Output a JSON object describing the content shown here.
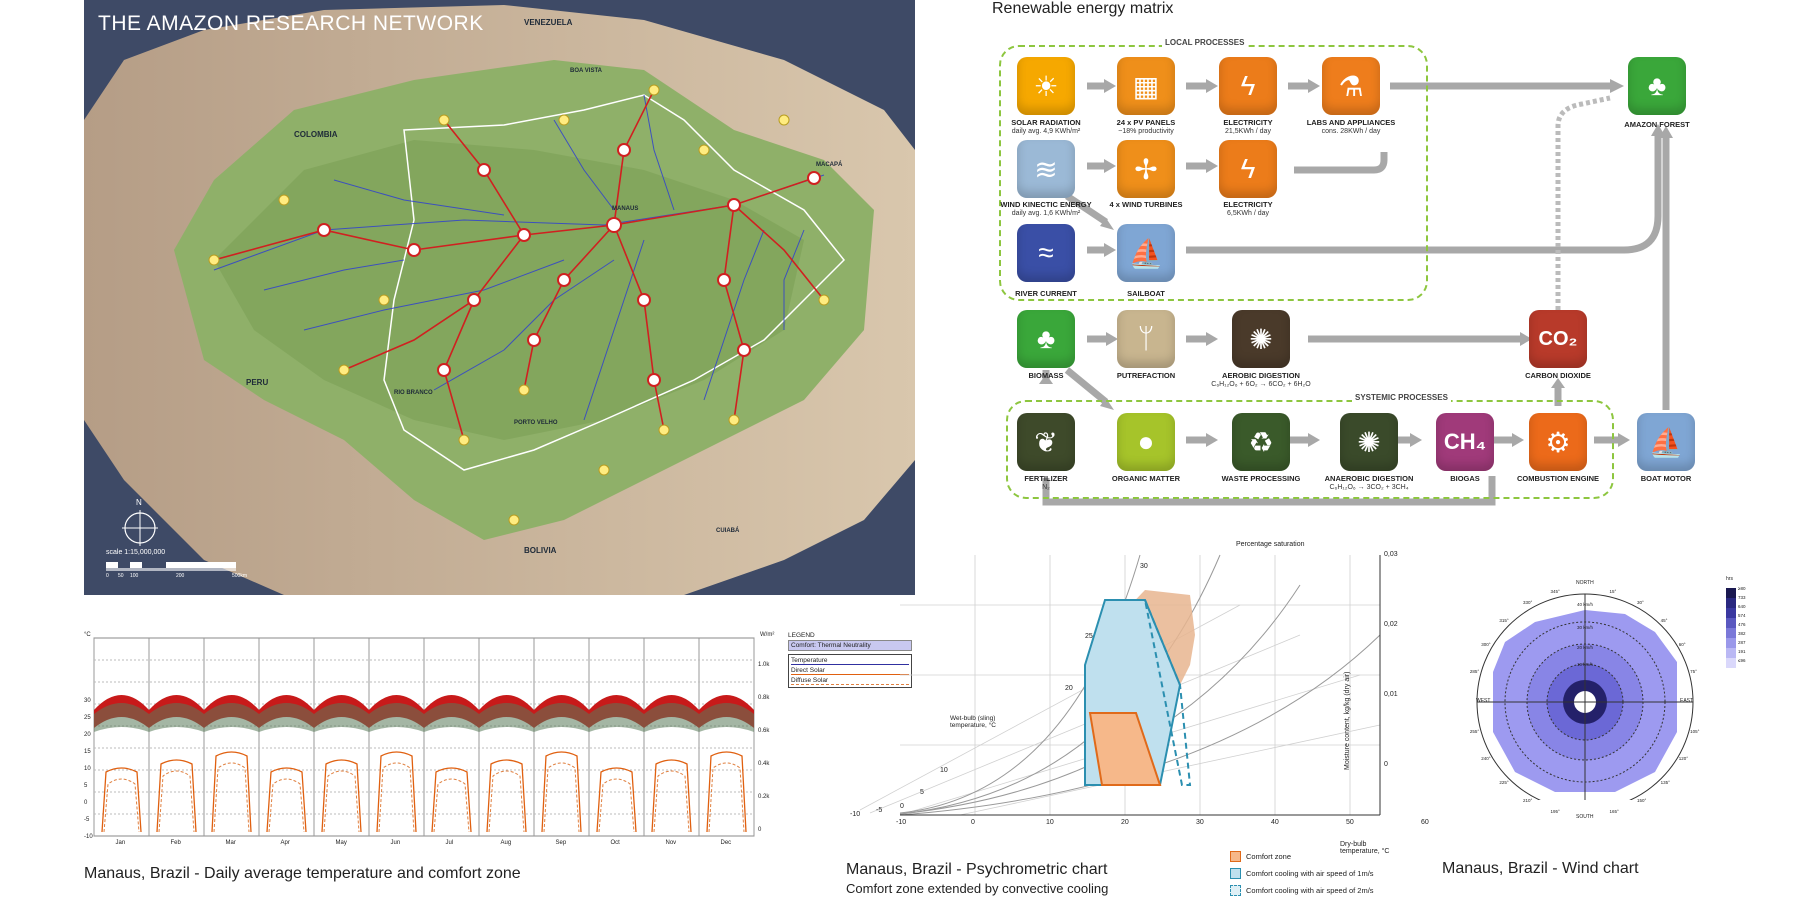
{
  "map": {
    "title": "THE AMAZON RESEARCH NETWORK",
    "countries": [
      "VENEZUELA",
      "COLOMBIA",
      "PERU",
      "BOLIVIA"
    ],
    "cities": [
      "BOA VISTA",
      "MACAPÁ",
      "MANAUS",
      "RIO BRANCO",
      "PORTO VELHO",
      "CUIABÁ"
    ],
    "compass": "N",
    "scale_label": "scale 1:15,000,000",
    "scale_ticks": [
      "0",
      "50",
      "100",
      "200",
      "500km"
    ]
  },
  "energy": {
    "title": "Renewable energy matrix",
    "local_label": "LOCAL PROCESSES",
    "systemic_label": "SYSTEMIC PROCESSES",
    "nodes": [
      {
        "label": "SOLAR RADIATION",
        "sub": "daily avg. 4,9 KWh/m²",
        "icon": "sun-icon",
        "glyph": "☀",
        "color": "#f6a800"
      },
      {
        "label": "24 x PV PANELS",
        "sub": "~18% productivity",
        "icon": "pv-panel-icon",
        "glyph": "▦",
        "color": "#ef8f1a"
      },
      {
        "label": "ELECTRICITY",
        "sub": "21,5KWh / day",
        "icon": "lightning-icon",
        "glyph": "ϟ",
        "color": "#ec7c1a"
      },
      {
        "label": "LABS AND APPLIANCES",
        "sub": "cons. 28KWh / day",
        "icon": "lab-flask-icon",
        "glyph": "⚗",
        "color": "#ee7d1c"
      },
      {
        "label": "AMAZON FOREST",
        "sub": "",
        "icon": "tree-icon",
        "glyph": "♣",
        "color": "#3aa73a"
      },
      {
        "label": "WIND KINECTIC ENERGY",
        "sub": "daily avg. 1,6 KWh/m²",
        "icon": "wind-icon",
        "glyph": "≋",
        "color": "#9bb9d6"
      },
      {
        "label": "4 x WIND TURBINES",
        "sub": "",
        "icon": "wind-turbine-icon",
        "glyph": "✢",
        "color": "#ef8f1a"
      },
      {
        "label": "ELECTRICITY",
        "sub": "6,5KWh / day",
        "icon": "lightning-icon",
        "glyph": "ϟ",
        "color": "#ec7c1a"
      },
      {
        "label": "RIVER CURRENT",
        "sub": "",
        "icon": "wave-icon",
        "glyph": "≈",
        "color": "#3a4fa6"
      },
      {
        "label": "SAILBOAT",
        "sub": "",
        "icon": "sailboat-icon",
        "glyph": "⛵",
        "color": "#7fa6d4"
      },
      {
        "label": "BIOMASS",
        "sub": "",
        "icon": "tree-icon",
        "glyph": "♣",
        "color": "#3aa73a"
      },
      {
        "label": "PUTREFACTION",
        "sub": "",
        "icon": "dead-tree-icon",
        "glyph": "ᛘ",
        "color": "#c8b58f"
      },
      {
        "label": "AEROBIC DIGESTION",
        "sub": "C₆H₁₂O₆ + 6O₂ → 6CO₂ + 6H₂O",
        "icon": "microbe-icon",
        "glyph": "✺",
        "color": "#4a3a2a"
      },
      {
        "label": "CARBON DIOXIDE",
        "sub": "",
        "icon": "co2-icon",
        "glyph": "CO₂",
        "color": "#b83a2a"
      },
      {
        "label": "FERTILIZER",
        "sub": "N₂",
        "icon": "fertilizer-bag-icon",
        "glyph": "❦",
        "color": "#3e4a2a"
      },
      {
        "label": "ORGANIC MATTER",
        "sub": "",
        "icon": "fruit-icon",
        "glyph": "●",
        "color": "#a6c42a"
      },
      {
        "label": "WASTE PROCESSING",
        "sub": "",
        "icon": "recycle-icon",
        "glyph": "♻",
        "color": "#3a5a2a"
      },
      {
        "label": "ANAEROBIC DIGESTION",
        "sub": "C₆H₁₂O₆ → 3CO₂ + 3CH₄",
        "icon": "microbe-icon",
        "glyph": "✺",
        "color": "#3a4a2a"
      },
      {
        "label": "BIOGAS",
        "sub": "",
        "icon": "ch4-icon",
        "glyph": "CH₄",
        "color": "#a03a7a"
      },
      {
        "label": "COMBUSTION ENGINE",
        "sub": "",
        "icon": "gear-icon",
        "glyph": "⚙",
        "color": "#ec6a1a"
      },
      {
        "label": "BOAT MOTOR",
        "sub": "",
        "icon": "sailboat-icon",
        "glyph": "⛵",
        "color": "#7fa6d4"
      }
    ]
  },
  "temp_chart": {
    "caption": "Manaus, Brazil - Daily average temperature and comfort zone",
    "months": [
      "Jan",
      "Feb",
      "Mar",
      "Apr",
      "May",
      "Jun",
      "Jul",
      "Aug",
      "Sep",
      "Oct",
      "Nov",
      "Dec"
    ],
    "left_unit": "°C",
    "right_unit": "W/m²",
    "left_ticks": [
      "30",
      "25",
      "20",
      "15",
      "10",
      "5",
      "0",
      "-5",
      "-10"
    ],
    "right_ticks": [
      "1.0k",
      "0.8k",
      "0.6k",
      "0.4k",
      "0.2k",
      "0"
    ],
    "legend": {
      "title": "LEGEND",
      "comfort": "Comfort: Thermal Neutrality",
      "items": [
        "Temperature",
        "Direct Solar",
        "Diffuse Solar"
      ]
    }
  },
  "psych": {
    "caption": "Manaus, Brazil - Psychrometric chart",
    "subcaption": "Comfort zone extended by convective cooling",
    "top_label": "Percentage saturation",
    "wetbulb_label": "Wet-bulb (sling) temperature, °C",
    "x_label": "Dry-bulb temperature, °C",
    "y_label": "Moisture content, kg/kg (dry air)",
    "x_ticks": [
      "-10",
      "0",
      "10",
      "20",
      "30",
      "40",
      "50",
      "60"
    ],
    "y_ticks": [
      "0,03",
      "0,02",
      "0,01",
      "0"
    ],
    "wb_ticks": [
      "30",
      "25",
      "20",
      "10",
      "5",
      "0",
      "-5",
      "-10"
    ],
    "legend": [
      "Comfort zone",
      "Comfort cooling with air speed of 1m/s",
      "Comfort cooling with air speed of 2m/s"
    ]
  },
  "wind": {
    "caption": "Manaus, Brazil - Wind chart",
    "directions": [
      "NORTH",
      "EAST",
      "SOUTH",
      "WEST"
    ],
    "angle_labels": [
      "15°",
      "30°",
      "45°",
      "60°",
      "75°",
      "105°",
      "120°",
      "135°",
      "150°",
      "165°",
      "195°",
      "210°",
      "225°",
      "240°",
      "255°",
      "285°",
      "300°",
      "315°",
      "330°",
      "345°"
    ],
    "ring_labels": [
      "40 km/h",
      "30 km/h",
      "20 km/h",
      "10 km/h"
    ],
    "scale_unit": "hrs",
    "scale_values": [
      "≥80",
      "733",
      "640",
      "574",
      "476",
      "382",
      "287",
      "191",
      "≤96"
    ]
  }
}
